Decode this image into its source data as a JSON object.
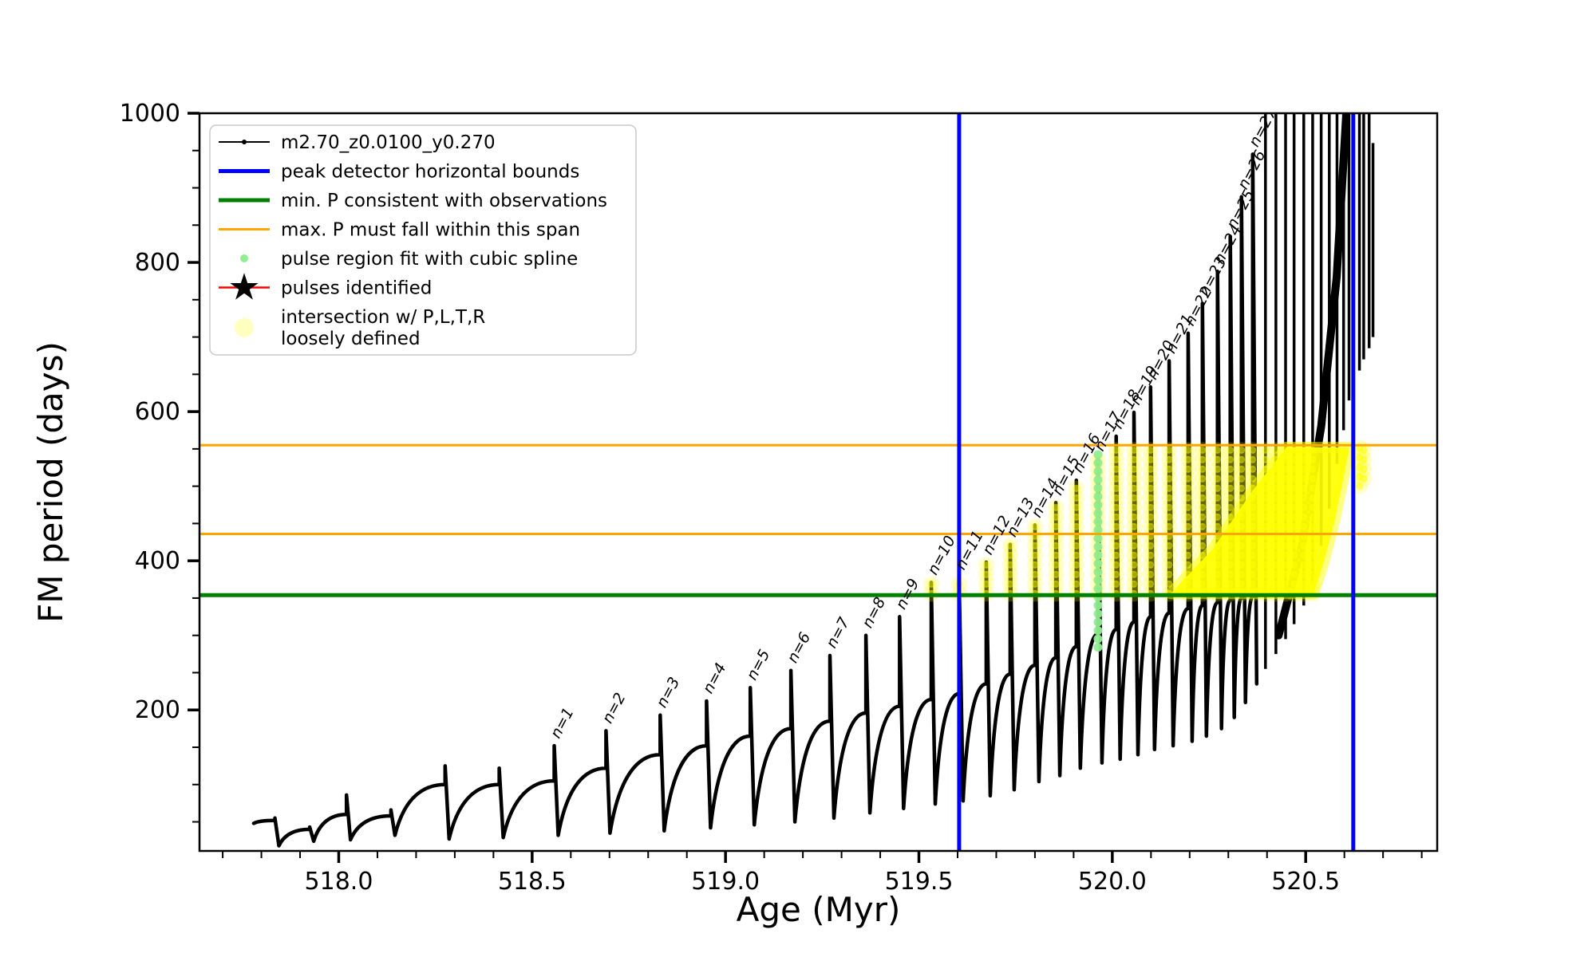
{
  "chart_data": {
    "type": "line",
    "title": "",
    "xlabel": "Age (Myr)",
    "ylabel": "FM period (days)",
    "xlim": [
      517.64,
      520.84
    ],
    "ylim": [
      11,
      1000
    ],
    "x_major_ticks": [
      518.0,
      518.5,
      519.0,
      519.5,
      520.0,
      520.5
    ],
    "x_minor_step": 0.1,
    "y_major_ticks": [
      200,
      400,
      600,
      800,
      1000
    ],
    "y_minor_step": 50,
    "grid": false,
    "legend_position": "upper left",
    "series_label": "m2.70_z0.0100_y0.270",
    "colors": {
      "track": "#000000",
      "peak_bounds": "#0000ff",
      "min_p": "#008000",
      "max_p_span": "#ffa500",
      "spline_fit": "#90ee90",
      "pulses_identified": "#ff0000",
      "intersection": "#ffff00"
    },
    "vlines_age": [
      519.604,
      520.623
    ],
    "hline_min_p": 354,
    "hlines_max_p_span": [
      436,
      555
    ],
    "curve": {
      "start": {
        "age": 517.78,
        "value": 48
      },
      "pre_teeth": [
        {
          "age": 517.835,
          "peak": 55,
          "shoulder": 52,
          "min_after": 18
        },
        {
          "age": 517.925,
          "peak": 43,
          "shoulder": 40,
          "min_after": 24
        },
        {
          "age": 518.02,
          "peak": 86,
          "shoulder": 60,
          "min_after": 26
        },
        {
          "age": 518.135,
          "peak": 66,
          "shoulder": 58,
          "min_after": 32
        },
        {
          "age": 518.275,
          "peak": 125,
          "shoulder": 100,
          "min_after": 27
        },
        {
          "age": 518.415,
          "peak": 122,
          "shoulder": 100,
          "min_after": 29
        }
      ],
      "pulses": [
        {
          "n": 1,
          "label": "n=1",
          "age": 518.557,
          "peak": 152,
          "shoulder": 105,
          "min_after": 32
        },
        {
          "n": 2,
          "label": "n=2",
          "age": 518.691,
          "peak": 172,
          "shoulder": 122,
          "min_after": 35
        },
        {
          "n": 3,
          "label": "n=3",
          "age": 518.831,
          "peak": 193,
          "shoulder": 140,
          "min_after": 38
        },
        {
          "n": 4,
          "label": "n=4",
          "age": 518.951,
          "peak": 212,
          "shoulder": 152,
          "min_after": 42
        },
        {
          "n": 5,
          "label": "n=5",
          "age": 519.064,
          "peak": 230,
          "shoulder": 165,
          "min_after": 46
        },
        {
          "n": 6,
          "label": "n=6",
          "age": 519.169,
          "peak": 253,
          "shoulder": 175,
          "min_after": 50
        },
        {
          "n": 7,
          "label": "n=7",
          "age": 519.27,
          "peak": 273,
          "shoulder": 185,
          "min_after": 55
        },
        {
          "n": 8,
          "label": "n=8",
          "age": 519.363,
          "peak": 300,
          "shoulder": 196,
          "min_after": 62
        },
        {
          "n": 9,
          "label": "n=9",
          "age": 519.45,
          "peak": 325,
          "shoulder": 205,
          "min_after": 68
        },
        {
          "n": 10,
          "label": "n=10",
          "age": 519.532,
          "peak": 371,
          "shoulder": 214,
          "min_after": 74
        },
        {
          "n": 11,
          "label": "n=11",
          "age": 519.604,
          "peak": 378,
          "shoulder": 222,
          "min_after": 78
        },
        {
          "n": 12,
          "label": "n=12",
          "age": 519.674,
          "peak": 398,
          "shoulder": 235,
          "min_after": 85
        },
        {
          "n": 13,
          "label": "n=13",
          "age": 519.736,
          "peak": 422,
          "shoulder": 248,
          "min_after": 93
        },
        {
          "n": 14,
          "label": "n=14",
          "age": 519.8,
          "peak": 448,
          "shoulder": 260,
          "min_after": 104
        },
        {
          "n": 15,
          "label": "n=15",
          "age": 519.854,
          "peak": 478,
          "shoulder": 270,
          "min_after": 112
        },
        {
          "n": 16,
          "label": "n=16",
          "age": 519.907,
          "peak": 508,
          "shoulder": 285,
          "min_after": 122
        },
        {
          "n": 17,
          "label": "n=17",
          "age": 519.963,
          "peak": 537,
          "shoulder": 302,
          "min_after": 129
        },
        {
          "n": 18,
          "label": "n=18",
          "age": 520.01,
          "peak": 567,
          "shoulder": 308,
          "min_after": 134
        },
        {
          "n": 19,
          "label": "n=19",
          "age": 520.056,
          "peak": 599,
          "shoulder": 318,
          "min_after": 140
        },
        {
          "n": 20,
          "label": "n=20",
          "age": 520.099,
          "peak": 633,
          "shoulder": 325,
          "min_after": 147
        },
        {
          "n": 21,
          "label": "n=21",
          "age": 520.147,
          "peak": 668,
          "shoulder": 330,
          "min_after": 152
        },
        {
          "n": 22,
          "label": "n=22",
          "age": 520.196,
          "peak": 705,
          "shoulder": 336,
          "min_after": 158
        },
        {
          "n": 23,
          "label": "n=23",
          "age": 520.233,
          "peak": 745,
          "shoulder": 340,
          "min_after": 165
        },
        {
          "n": 24,
          "label": "n=24",
          "age": 520.272,
          "peak": 788,
          "shoulder": 344,
          "min_after": 175
        },
        {
          "n": 25,
          "label": "n=25",
          "age": 520.305,
          "peak": 835,
          "shoulder": 347,
          "min_after": 190
        },
        {
          "n": 26,
          "label": "n=26",
          "age": 520.334,
          "peak": 888,
          "shoulder": 350,
          "min_after": 210
        },
        {
          "n": 27,
          "label": "n=27",
          "age": 520.363,
          "peak": 945,
          "shoulder": 352,
          "min_after": 235
        }
      ],
      "comb_spikes": [
        {
          "age": 520.396,
          "top": 1000,
          "bottom": 255
        },
        {
          "age": 520.423,
          "top": 1000,
          "bottom": 275
        },
        {
          "age": 520.448,
          "top": 1000,
          "bottom": 295
        },
        {
          "age": 520.47,
          "top": 1000,
          "bottom": 315
        },
        {
          "age": 520.495,
          "top": 1000,
          "bottom": 340
        },
        {
          "age": 520.518,
          "top": 1000,
          "bottom": 370
        },
        {
          "age": 520.54,
          "top": 1000,
          "bottom": 420
        },
        {
          "age": 520.561,
          "top": 1000,
          "bottom": 470
        },
        {
          "age": 520.581,
          "top": 1000,
          "bottom": 530
        },
        {
          "age": 520.598,
          "top": 1000,
          "bottom": 575
        },
        {
          "age": 520.612,
          "top": 1000,
          "bottom": 615
        },
        {
          "age": 520.639,
          "top": 1000,
          "bottom": 655
        },
        {
          "age": 520.65,
          "top": 1000,
          "bottom": 670
        },
        {
          "age": 520.664,
          "top": 1000,
          "bottom": 685
        },
        {
          "age": 520.674,
          "top": 960,
          "bottom": 700
        }
      ],
      "steep_band": [
        [
          520.43,
          300
        ],
        [
          520.49,
          420
        ],
        [
          520.54,
          580
        ],
        [
          520.58,
          780
        ],
        [
          520.605,
          1000
        ]
      ]
    },
    "spline_fit_column": {
      "age": 519.963,
      "v0": 284,
      "v1": 548
    },
    "yellow_intersection": {
      "columns": [
        {
          "age": 519.532,
          "v0": 356,
          "v1": 371
        },
        {
          "age": 519.604,
          "v0": 356,
          "v1": 378
        },
        {
          "age": 519.674,
          "v0": 356,
          "v1": 398
        },
        {
          "age": 519.736,
          "v0": 356,
          "v1": 422
        },
        {
          "age": 519.8,
          "v0": 356,
          "v1": 448
        },
        {
          "age": 519.854,
          "v0": 356,
          "v1": 478
        },
        {
          "age": 519.907,
          "v0": 356,
          "v1": 508
        },
        {
          "age": 519.963,
          "v0": 356,
          "v1": 537
        },
        {
          "age": 520.01,
          "v0": 356,
          "v1": 552
        },
        {
          "age": 520.056,
          "v0": 356,
          "v1": 552
        },
        {
          "age": 520.099,
          "v0": 356,
          "v1": 552
        },
        {
          "age": 520.147,
          "v0": 356,
          "v1": 552
        },
        {
          "age": 520.196,
          "v0": 356,
          "v1": 552
        },
        {
          "age": 520.233,
          "v0": 356,
          "v1": 552
        },
        {
          "age": 520.272,
          "v0": 356,
          "v1": 552
        },
        {
          "age": 520.305,
          "v0": 356,
          "v1": 552
        },
        {
          "age": 520.334,
          "v0": 356,
          "v1": 552
        },
        {
          "age": 520.363,
          "v0": 356,
          "v1": 552
        },
        {
          "age": 520.396,
          "v0": 356,
          "v1": 552
        },
        {
          "age": 520.423,
          "v0": 356,
          "v1": 552
        },
        {
          "age": 520.448,
          "v0": 356,
          "v1": 552
        },
        {
          "age": 520.47,
          "v0": 356,
          "v1": 552
        },
        {
          "age": 520.495,
          "v0": 356,
          "v1": 552
        },
        {
          "age": 520.518,
          "v0": 356,
          "v1": 552
        },
        {
          "age": 520.639,
          "v0": 500,
          "v1": 552
        },
        {
          "age": 520.65,
          "v0": 510,
          "v1": 552
        }
      ],
      "blob_polygon": [
        [
          520.151,
          356
        ],
        [
          520.52,
          356
        ],
        [
          520.545,
          395
        ],
        [
          520.575,
          455
        ],
        [
          520.598,
          512
        ],
        [
          520.612,
          552
        ],
        [
          520.45,
          552
        ],
        [
          520.36,
          492
        ],
        [
          520.26,
          416
        ],
        [
          520.151,
          356
        ]
      ]
    }
  },
  "legend": {
    "items": [
      {
        "swatch": "line-marker",
        "color": "#000000",
        "lw": 2,
        "label": "m2.70_z0.0100_y0.270"
      },
      {
        "swatch": "line",
        "color": "#0000ff",
        "lw": 5,
        "label": "peak detector horizontal bounds"
      },
      {
        "swatch": "line",
        "color": "#008000",
        "lw": 5,
        "label": "min. P consistent with observations"
      },
      {
        "swatch": "line",
        "color": "#ffa500",
        "lw": 3,
        "label": "max. P must fall within this span"
      },
      {
        "swatch": "dot",
        "color": "#90ee90",
        "r": 5,
        "label": "pulse region fit with cubic spline"
      },
      {
        "swatch": "star-line",
        "color": "#ff0000",
        "label": "pulses identified"
      },
      {
        "swatch": "big-dot",
        "color": "#ffffb0",
        "r": 12,
        "label": [
          "intersection w/ P,L,T,R",
          "loosely defined"
        ]
      }
    ]
  }
}
